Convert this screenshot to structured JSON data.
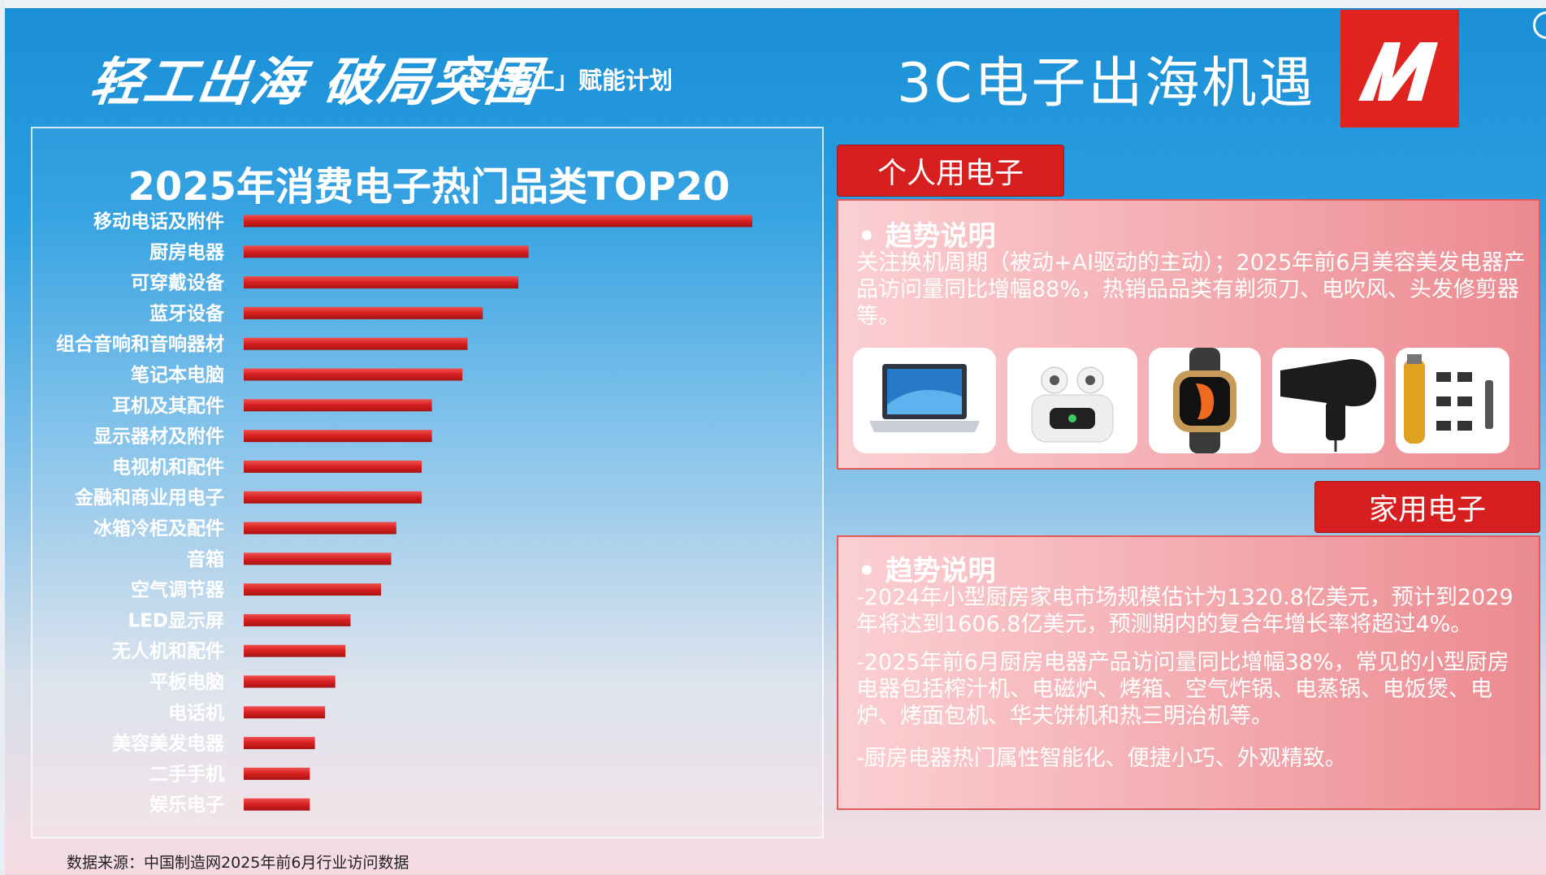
{
  "header": {
    "slogan": "轻工出海 破局突围",
    "subslogan": "「十大轻工」赋能计划",
    "title": "3C电子出海机遇"
  },
  "colors": {
    "bar_red": "#d71f1f",
    "panel_red": "#e1231f",
    "accent_blue": "#1a8fd6"
  },
  "chart_data": {
    "type": "bar",
    "orientation": "horizontal",
    "title": "2025年消费电子热门品类TOP20",
    "categories": [
      "移动电话及附件",
      "厨房电器",
      "可穿戴设备",
      "蓝牙设备",
      "组合音响和音响器材",
      "笔记本电脑",
      "耳机及其配件",
      "显示器材及附件",
      "电视机和配件",
      "金融和商业用电子",
      "冰箱冷柜及配件",
      "音箱",
      "空气调节器",
      "LED显示屏",
      "无人机和配件",
      "平板电脑",
      "电话机",
      "美容美发电器",
      "二手手机",
      "娱乐电子"
    ],
    "values": [
      100,
      56,
      54,
      47,
      44,
      43,
      37,
      37,
      35,
      35,
      30,
      29,
      27,
      21,
      20,
      18,
      16,
      14,
      13,
      13
    ],
    "value_axis": {
      "min": 0,
      "max": 100,
      "shown": false
    },
    "grid": false,
    "legend": "none"
  },
  "source": "数据来源：中国制造网2025年前6月行业访问数据",
  "personal": {
    "tab": "个人用电子",
    "heading": "• 趋势说明",
    "text": "关注换机周期（被动+AI驱动的主动）；2025年前6月美容美发电器产品访问量同比增幅88%，热销品品类有剃须刀、电吹风、头发修剪器等。",
    "products": [
      "laptop-icon",
      "earbuds-icon",
      "smartwatch-icon",
      "hair-dryer-icon",
      "hair-clipper-icon"
    ]
  },
  "home": {
    "tab": "家用电子",
    "heading": "• 趋势说明",
    "p1": "-2024年小型厨房家电市场规模估计为1320.8亿美元，预计到2029年将达到1606.8亿美元，预测期内的复合年增长率将超过4%。",
    "p2": "-2025年前6月厨房电器产品访问量同比增幅38%，常见的小型厨房电器包括榨汁机、电磁炉、烤箱、空气炸锅、电蒸锅、电饭煲、电炉、烤面包机、华夫饼机和热三明治机等。",
    "p3": "-厨房电器热门属性智能化、便捷小巧、外观精致。"
  }
}
